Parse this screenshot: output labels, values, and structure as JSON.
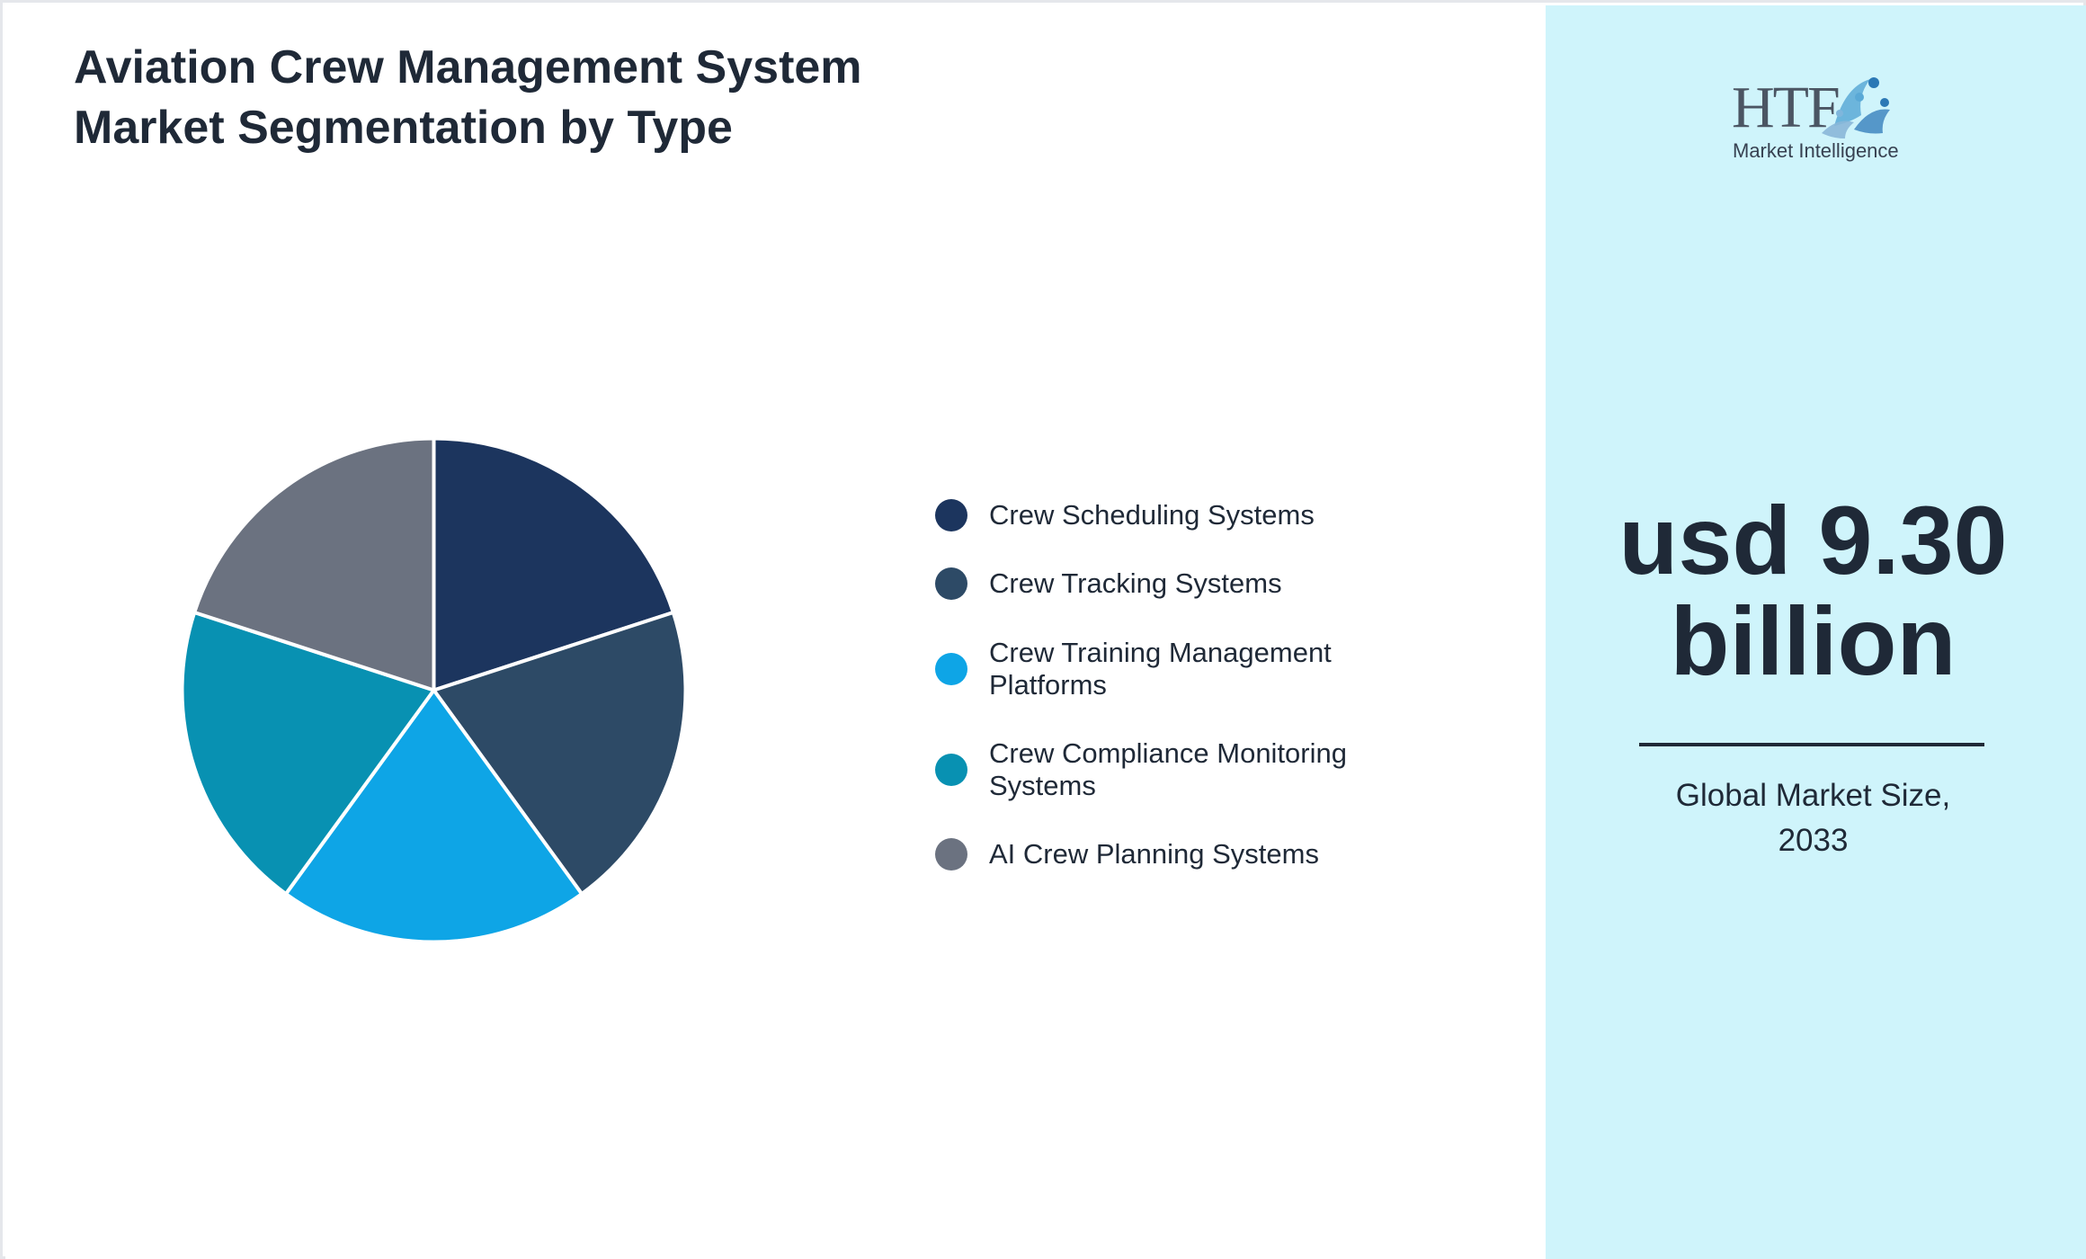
{
  "title": "Aviation Crew Management System Market Segmentation by Type",
  "chart_data": {
    "type": "pie",
    "categories": [
      "Crew Scheduling Systems",
      "Crew Tracking Systems",
      "Crew Training Management Platforms",
      "Crew Compliance Monitoring Systems",
      "AI Crew Planning Systems"
    ],
    "values": [
      20,
      20,
      20,
      20,
      20
    ],
    "colors": [
      "#1c355e",
      "#2d4a66",
      "#0ea5e6",
      "#0891b2",
      "#6b7280"
    ],
    "legend_position": "right"
  },
  "market": {
    "value_line1": "usd 9.30",
    "value_line2": "billion",
    "caption_line1": "Global Market Size,",
    "caption_line2": "2033"
  },
  "logo": {
    "brand": "HTF",
    "subtitle": "Market Intelligence"
  }
}
